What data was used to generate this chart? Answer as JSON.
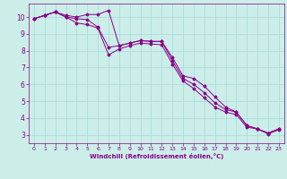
{
  "xlabel": "Windchill (Refroidissement éolien,°C)",
  "ylabel": "",
  "bg_color": "#cceee8",
  "line_color": "#880088",
  "grid_color": "#aadddd",
  "xlim": [
    -0.5,
    23.5
  ],
  "ylim": [
    2.5,
    10.8
  ],
  "xticks": [
    0,
    1,
    2,
    3,
    4,
    5,
    6,
    7,
    8,
    9,
    10,
    11,
    12,
    13,
    14,
    15,
    16,
    17,
    18,
    19,
    20,
    21,
    22,
    23
  ],
  "yticks": [
    3,
    4,
    5,
    6,
    7,
    8,
    9,
    10
  ],
  "series": [
    [
      9.9,
      10.1,
      10.3,
      10.1,
      10.0,
      10.15,
      10.15,
      10.4,
      8.3,
      8.45,
      8.6,
      8.55,
      8.55,
      7.6,
      6.5,
      6.35,
      5.9,
      5.25,
      4.65,
      4.35,
      3.55,
      3.35,
      3.1,
      3.35
    ],
    [
      9.9,
      10.1,
      10.3,
      10.0,
      9.9,
      9.85,
      9.4,
      8.2,
      8.3,
      8.45,
      8.6,
      8.55,
      8.55,
      7.4,
      6.35,
      6.0,
      5.5,
      4.9,
      4.5,
      4.35,
      3.55,
      3.35,
      3.1,
      3.35
    ],
    [
      9.9,
      10.1,
      10.3,
      10.0,
      9.65,
      9.55,
      9.35,
      7.75,
      8.1,
      8.3,
      8.45,
      8.4,
      8.35,
      7.2,
      6.2,
      5.75,
      5.2,
      4.65,
      4.35,
      4.2,
      3.45,
      3.35,
      3.05,
      3.3
    ]
  ]
}
